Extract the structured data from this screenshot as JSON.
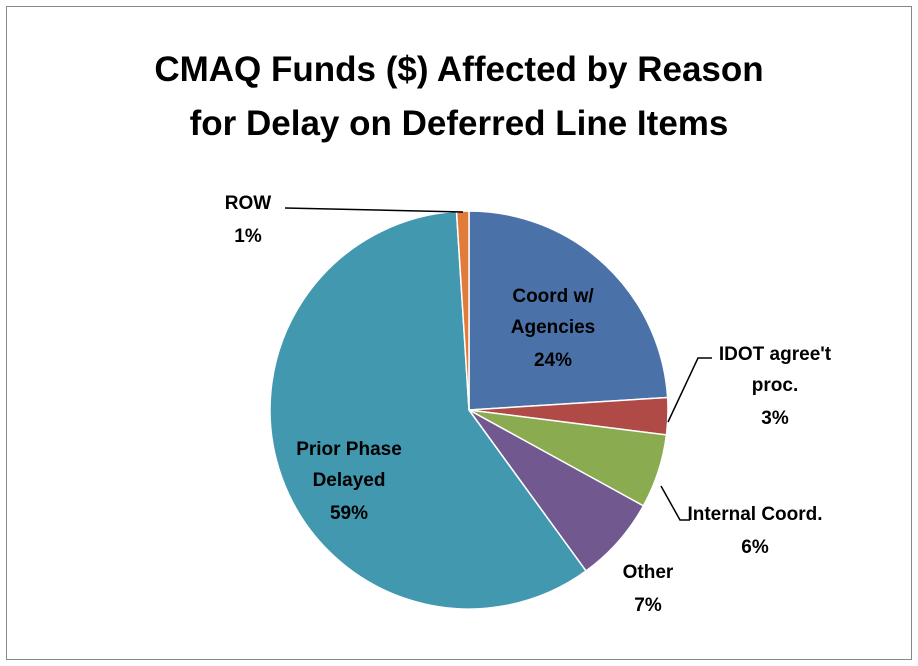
{
  "chart_data": {
    "type": "pie",
    "title": "CMAQ Funds ($) Affected by Reason\nfor Delay on Deferred Line Items",
    "categories": [
      "Coord w/\nAgencies",
      "IDOT agree't\nproc.",
      "Internal Coord.",
      "Other",
      "Prior Phase\nDelayed",
      "ROW"
    ],
    "values": [
      24,
      3,
      6,
      7,
      59,
      1
    ],
    "value_labels": [
      "24%",
      "3%",
      "6%",
      "7%",
      "59%",
      "1%"
    ],
    "colors": [
      "#4a72a8",
      "#b04a47",
      "#8aab4f",
      "#71588f",
      "#4198af",
      "#e07b39"
    ]
  }
}
